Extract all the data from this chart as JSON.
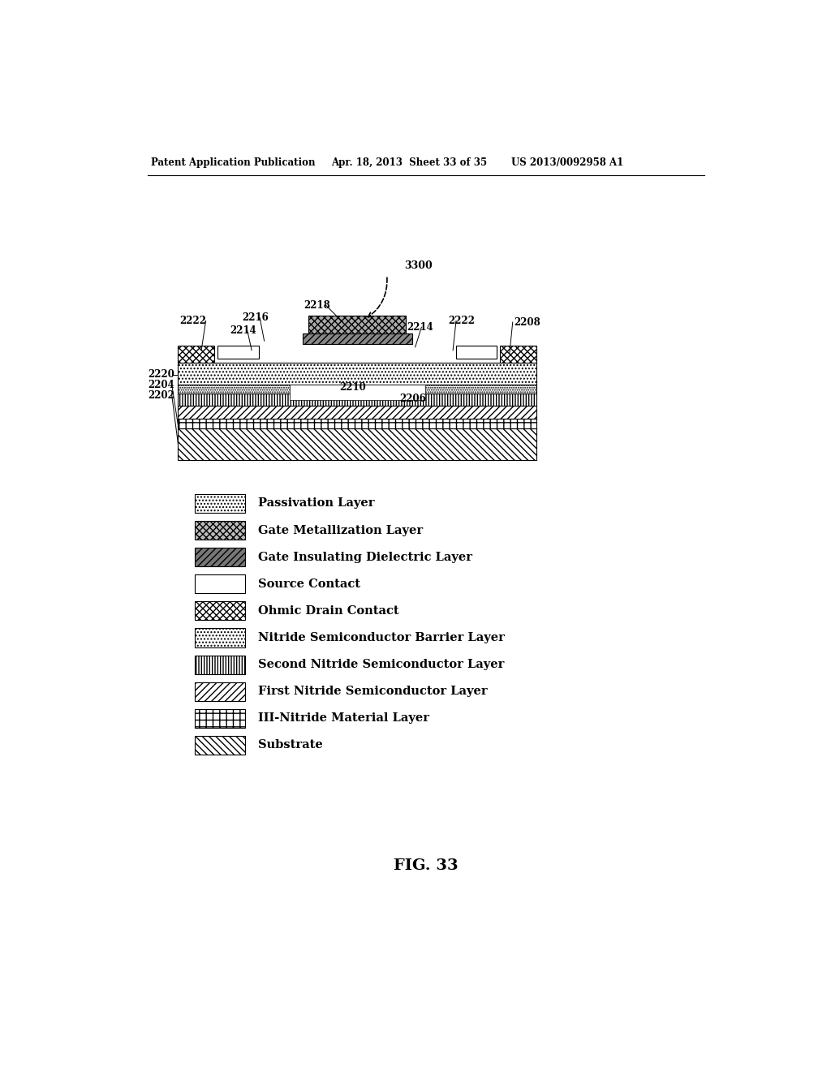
{
  "header_left": "Patent Application Publication",
  "header_mid": "Apr. 18, 2013  Sheet 33 of 35",
  "header_right": "US 2013/0092958 A1",
  "fig_label": "FIG. 33",
  "legend_items": [
    {
      "label": "Passivation Layer"
    },
    {
      "label": "Gate Metallization Layer"
    },
    {
      "label": "Gate Insulating Dielectric Layer"
    },
    {
      "label": "Source Contact"
    },
    {
      "label": "Ohmic Drain Contact"
    },
    {
      "label": "Nitride Semiconductor Barrier Layer"
    },
    {
      "label": "Second Nitride Semiconductor Layer"
    },
    {
      "label": "First Nitride Semiconductor Layer"
    },
    {
      "label": "III-Nitride Material Layer"
    },
    {
      "label": "Substrate"
    }
  ]
}
